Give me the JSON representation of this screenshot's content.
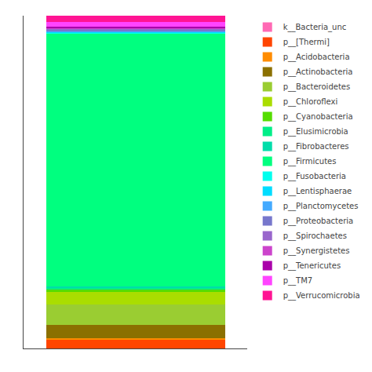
{
  "chart_data": {
    "type": "bar",
    "stacked": true,
    "categories": [
      null
    ],
    "series": [
      {
        "name": "k__Bacteria_unc",
        "color": "#FF69B4",
        "values": [
          0.001
        ]
      },
      {
        "name": "p__[Thermi]",
        "color": "#FF4500",
        "values": [
          0.025
        ]
      },
      {
        "name": "p__Acidobacteria",
        "color": "#FF8C00",
        "values": [
          0.005
        ]
      },
      {
        "name": "p__Actinobacteria",
        "color": "#8B7000",
        "values": [
          0.04
        ]
      },
      {
        "name": "p__Bacteroidetes",
        "color": "#9ACD32",
        "values": [
          0.06
        ]
      },
      {
        "name": "p__Chloroflexi",
        "color": "#AADD00",
        "values": [
          0.04
        ]
      },
      {
        "name": "p__Cyanobacteria",
        "color": "#55DD00",
        "values": [
          0.005
        ]
      },
      {
        "name": "p__Elusimicrobia",
        "color": "#00EE88",
        "values": [
          0.005
        ]
      },
      {
        "name": "p__Fibrobacteres",
        "color": "#00DDAA",
        "values": [
          0.005
        ]
      },
      {
        "name": "p__Firmicutes",
        "color": "#00FF7F",
        "values": [
          0.76
        ]
      },
      {
        "name": "p__Fusobacteria",
        "color": "#00FFEE",
        "values": [
          0.003
        ]
      },
      {
        "name": "p__Lentisphaerae",
        "color": "#00DDFF",
        "values": [
          0.003
        ]
      },
      {
        "name": "p__Planctomycetes",
        "color": "#44AAFF",
        "values": [
          0.003
        ]
      },
      {
        "name": "p__Proteobacteria",
        "color": "#7777CC",
        "values": [
          0.003
        ]
      },
      {
        "name": "p__Spirochaetes",
        "color": "#9966CC",
        "values": [
          0.003
        ]
      },
      {
        "name": "p__Synergistetes",
        "color": "#CC44CC",
        "values": [
          0.003
        ]
      },
      {
        "name": "p__Tenericutes",
        "color": "#AA00AA",
        "values": [
          0.003
        ]
      },
      {
        "name": "p__TM7",
        "color": "#FF44FF",
        "values": [
          0.015
        ]
      },
      {
        "name": "p__Verrucomicrobia",
        "color": "#FF1493",
        "values": [
          0.018
        ]
      }
    ],
    "ylim": [
      0,
      1
    ],
    "yticks": [],
    "tick_labels": false,
    "grid": false,
    "legend": "right"
  }
}
